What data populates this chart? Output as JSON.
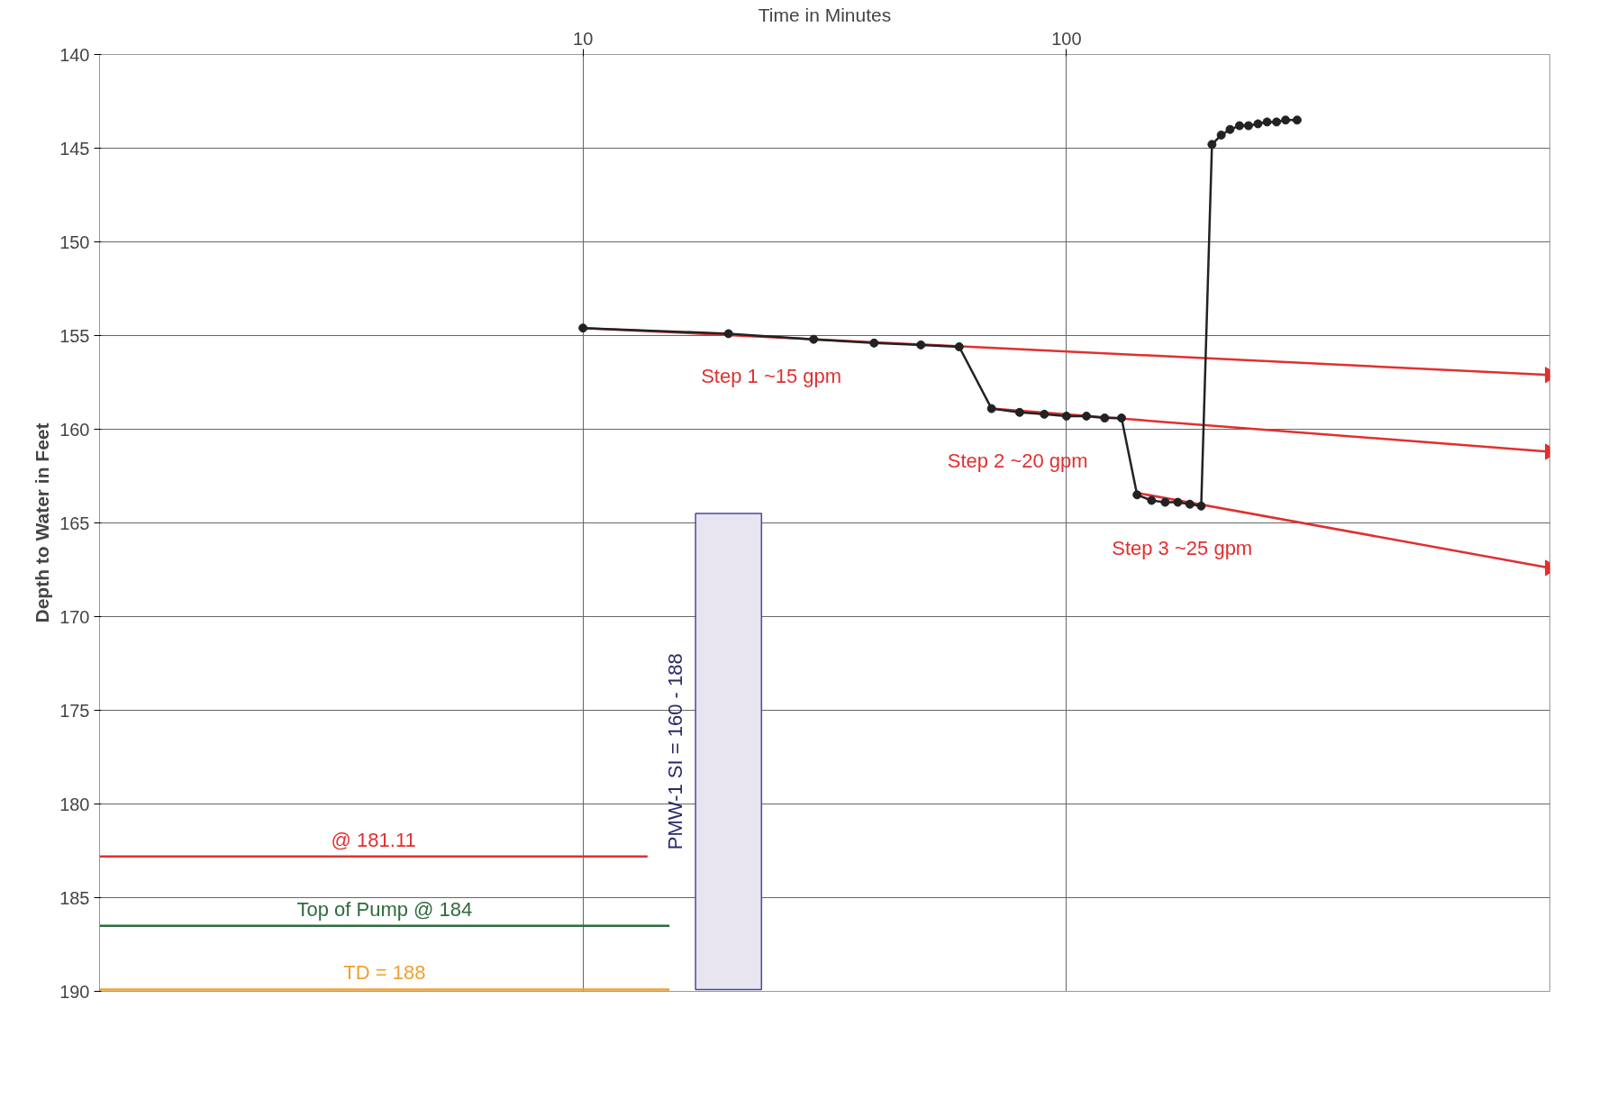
{
  "chart_data": {
    "type": "line",
    "xlabel": "Time in Minutes",
    "ylabel": "Depth to Water in Feet",
    "log": "x",
    "xlim": [
      1,
      1000
    ],
    "xticks": [
      10,
      100
    ],
    "ylim": [
      190,
      140
    ],
    "yticks": [
      140,
      145,
      150,
      155,
      160,
      165,
      170,
      175,
      180,
      185,
      190
    ],
    "grid": true,
    "series": [
      {
        "type": "bar",
        "color": "#e8e4f0",
        "x": [
          20
        ],
        "base": [
          164.5
        ],
        "values": [
          25.4
        ]
      },
      {
        "color": "#e03030",
        "x": [
          10,
          1000
        ],
        "values": [
          154.6,
          157.1
        ]
      },
      {
        "color": "#e03030",
        "x": [
          70,
          1000
        ],
        "values": [
          158.9,
          161.2
        ]
      },
      {
        "color": "#e03030",
        "x": [
          140,
          1000
        ],
        "values": [
          163.4,
          167.4
        ]
      },
      {
        "name": "@ 181.11",
        "color": "#e03030",
        "marker": "none",
        "x": [
          1,
          13.6
        ],
        "values": [
          182.8,
          182.8
        ]
      },
      {
        "name": "Top of Pump @ 184",
        "color": "#2e6b3e",
        "marker": "none",
        "x": [
          1,
          15.1
        ],
        "values": [
          186.5,
          186.5
        ]
      },
      {
        "name": "TD = 188",
        "color": "#f0a030",
        "marker": "none",
        "x": [
          1,
          15.1
        ],
        "values": [
          189.9,
          189.9
        ]
      },
      {
        "color": "#222222",
        "marker": "circle",
        "x": [
          10,
          20,
          30,
          40,
          50,
          60,
          70,
          80,
          90,
          100,
          110,
          120,
          130,
          140,
          150,
          160,
          170,
          180,
          190,
          200,
          209,
          218,
          228,
          238,
          249,
          260,
          272,
          284,
          300
        ],
        "values": [
          154.6,
          154.9,
          155.2,
          155.4,
          155.5,
          155.6,
          158.9,
          159.1,
          159.2,
          159.3,
          159.3,
          159.4,
          159.4,
          163.5,
          163.8,
          163.9,
          163.9,
          164.0,
          164.1,
          144.8,
          144.3,
          144.0,
          143.8,
          143.8,
          143.7,
          143.6,
          143.6,
          143.5,
          143.5
        ]
      }
    ],
    "annotations": [
      "Step 1 ~15 gpm",
      "Step 2 ~20 gpm",
      "Step 3 ~25 gpm",
      "PMW-1 SI = 160 - 188"
    ]
  }
}
